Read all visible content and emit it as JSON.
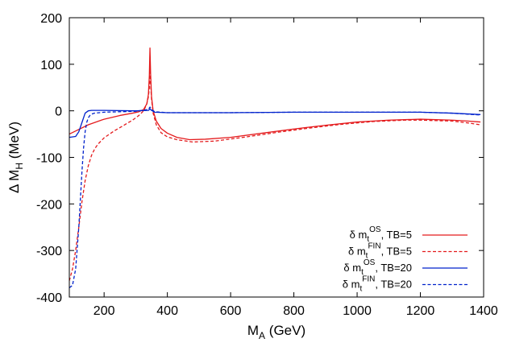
{
  "chart_data": {
    "type": "line",
    "xlabel": {
      "main": "M",
      "sub": "A",
      "rest": " (GeV)"
    },
    "ylabel": {
      "pre": "Δ M",
      "sub": "H",
      "rest": " (MeV)"
    },
    "xlim": [
      90,
      1400
    ],
    "ylim": [
      -400,
      200
    ],
    "xticks": [
      200,
      400,
      600,
      800,
      1000,
      1200,
      1400
    ],
    "yticks": [
      -400,
      -300,
      -200,
      -100,
      0,
      100,
      200
    ],
    "grid": false,
    "legend_position": "bottom-right",
    "series": [
      {
        "legend": {
          "pre": "δ m",
          "sub": "t",
          "sup": "OS",
          "post": ", TB=5"
        },
        "color": "#e41a1c",
        "dash": "solid",
        "x": [
          90,
          120,
          150,
          200,
          250,
          290,
          310,
          325,
          335,
          340,
          343,
          345,
          347,
          350,
          355,
          365,
          380,
          400,
          430,
          470,
          520,
          600,
          700,
          800,
          900,
          1000,
          1100,
          1200,
          1300,
          1350,
          1390
        ],
        "y": [
          -50,
          -40,
          -30,
          -18,
          -10,
          -5,
          -2,
          3,
          15,
          35,
          75,
          135,
          80,
          30,
          0,
          -22,
          -38,
          -48,
          -57,
          -62,
          -61,
          -57,
          -48,
          -39,
          -31,
          -24,
          -20,
          -18,
          -20,
          -22,
          -24
        ]
      },
      {
        "legend": {
          "pre": "δ m",
          "sub": "t",
          "sup": "FIN",
          "post": ", TB=5"
        },
        "color": "#e41a1c",
        "dash": "dashed",
        "x": [
          90,
          100,
          110,
          120,
          130,
          140,
          150,
          160,
          170,
          180,
          200,
          230,
          260,
          290,
          310,
          325,
          335,
          340,
          343,
          345,
          347,
          350,
          355,
          365,
          380,
          400,
          430,
          480,
          550,
          650,
          750,
          850,
          950,
          1050,
          1150,
          1200,
          1300,
          1350,
          1390
        ],
        "y": [
          -365,
          -340,
          -300,
          -250,
          -195,
          -150,
          -118,
          -96,
          -82,
          -72,
          -58,
          -44,
          -32,
          -20,
          -10,
          0,
          15,
          30,
          50,
          100,
          60,
          25,
          -5,
          -30,
          -47,
          -56,
          -62,
          -67,
          -65,
          -56,
          -46,
          -37,
          -29,
          -23,
          -20,
          -20,
          -22,
          -26,
          -30
        ]
      },
      {
        "legend": {
          "pre": "δ m",
          "sub": "t",
          "sup": "OS",
          "post": ", TB=20"
        },
        "color": "#0022cc",
        "dash": "solid",
        "x": [
          90,
          110,
          120,
          130,
          140,
          150,
          160,
          200,
          300,
          340,
          345,
          350,
          360,
          400,
          600,
          800,
          1000,
          1200,
          1300,
          1390
        ],
        "y": [
          -57,
          -55,
          -45,
          -25,
          -5,
          0,
          1,
          1,
          0,
          1,
          4,
          1,
          -3,
          -4,
          -4,
          -3,
          -3,
          -3,
          -5,
          -8
        ]
      },
      {
        "legend": {
          "pre": "δ m",
          "sub": "t",
          "sup": "FIN",
          "post": ", TB=20"
        },
        "color": "#0022cc",
        "dash": "dashed",
        "x": [
          90,
          100,
          110,
          120,
          125,
          130,
          135,
          140,
          145,
          150,
          155,
          160,
          170,
          200,
          250,
          300,
          340,
          345,
          350,
          360,
          400,
          600,
          800,
          1000,
          1200,
          1300,
          1390
        ],
        "y": [
          -380,
          -375,
          -340,
          -250,
          -190,
          -130,
          -80,
          -45,
          -25,
          -15,
          -10,
          -7,
          -5,
          -3,
          -2,
          -1,
          3,
          8,
          3,
          -2,
          -4,
          -4,
          -3,
          -3,
          -3,
          -5,
          -9
        ]
      }
    ]
  }
}
